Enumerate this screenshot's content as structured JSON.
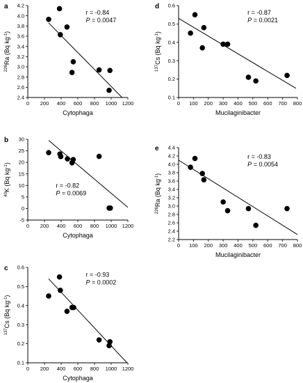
{
  "chart_data": [
    {
      "panel": "a",
      "type": "scatter",
      "xlabel": "Cytophaga",
      "ylabel": "226Ra (Bq kg-1)",
      "ylabel_parts": {
        "sup": "226",
        "main": "Ra (Bq kg",
        "exp": "-1",
        "close": ")"
      },
      "xlim": [
        0,
        1200
      ],
      "ylim": [
        2.4,
        4.2
      ],
      "xticks": [
        0,
        200,
        400,
        600,
        800,
        1000,
        1200
      ],
      "yticks": [
        2.4,
        2.6,
        2.8,
        3.0,
        3.2,
        3.4,
        3.6,
        3.8,
        4.0,
        4.2
      ],
      "ytick_labels": [
        "2.4",
        "2.6",
        "2.8",
        "3.0",
        "3.2",
        "3.4",
        "3.6",
        "3.8",
        "4.0",
        "4.2"
      ],
      "points": [
        [
          250,
          3.93
        ],
        [
          380,
          4.14
        ],
        [
          390,
          3.63
        ],
        [
          470,
          3.78
        ],
        [
          530,
          2.89
        ],
        [
          545,
          3.1
        ],
        [
          855,
          2.94
        ],
        [
          985,
          2.93
        ],
        [
          975,
          2.54
        ]
      ],
      "fit": {
        "x": [
          250,
          1130
        ],
        "y": [
          3.86,
          2.4
        ]
      },
      "r_text": "r = -0.84",
      "p_label": "P",
      "p_value": " = 0.0047"
    },
    {
      "panel": "b",
      "type": "scatter",
      "xlabel": "Cytophaga",
      "ylabel": "40K (Bq kg-1)",
      "ylabel_parts": {
        "sup": "40",
        "main": "K (Bq kg",
        "exp": "-1",
        "close": ")"
      },
      "xlim": [
        0,
        1200
      ],
      "ylim": [
        -5,
        30
      ],
      "xticks": [
        0,
        200,
        400,
        600,
        800,
        1000,
        1200
      ],
      "yticks": [
        -5,
        0,
        5,
        10,
        15,
        20,
        25,
        30
      ],
      "ytick_labels": [
        "-5",
        "0",
        "5",
        "10",
        "15",
        "20",
        "25",
        "30"
      ],
      "points": [
        [
          250,
          24.2
        ],
        [
          385,
          23.6
        ],
        [
          395,
          22.5
        ],
        [
          475,
          21.5
        ],
        [
          530,
          19.8
        ],
        [
          545,
          21.2
        ],
        [
          855,
          22.6
        ],
        [
          975,
          0.2
        ],
        [
          990,
          0.2
        ]
      ],
      "fit": {
        "x": [
          250,
          1200
        ],
        "y": [
          29.5,
          0.5
        ]
      },
      "r_text": "r = -0.82",
      "p_label": "P",
      "p_value": " = 0.0069"
    },
    {
      "panel": "c",
      "type": "scatter",
      "xlabel": "Cytophaga",
      "ylabel": "137Cs (Bq kg-1)",
      "ylabel_parts": {
        "sup": "137",
        "main": "Cs (Bq kg",
        "exp": "-1",
        "close": ")"
      },
      "xlim": [
        0,
        1200
      ],
      "ylim": [
        0.1,
        0.6
      ],
      "xticks": [
        0,
        200,
        400,
        600,
        800,
        1000,
        1200
      ],
      "yticks": [
        0.1,
        0.2,
        0.3,
        0.4,
        0.5,
        0.6
      ],
      "ytick_labels": [
        "0.1",
        "0.2",
        "0.3",
        "0.4",
        "0.5",
        "0.6"
      ],
      "points": [
        [
          250,
          0.45
        ],
        [
          380,
          0.55
        ],
        [
          390,
          0.48
        ],
        [
          470,
          0.37
        ],
        [
          530,
          0.39
        ],
        [
          550,
          0.39
        ],
        [
          855,
          0.22
        ],
        [
          975,
          0.19
        ],
        [
          985,
          0.21
        ]
      ],
      "fit": {
        "x": [
          250,
          1190
        ],
        "y": [
          0.54,
          0.1
        ]
      },
      "r_text": "r = -0.93",
      "p_label": "P",
      "p_value": " = 0.0002"
    },
    {
      "panel": "d",
      "type": "scatter",
      "xlabel": "Mucilaginibacter",
      "ylabel": "137Cs (Bq kg-1)",
      "ylabel_parts": {
        "sup": "137",
        "main": "Cs (Bq kg",
        "exp": "-1",
        "close": ")"
      },
      "xlim": [
        0,
        800
      ],
      "ylim": [
        0.1,
        0.6
      ],
      "xticks": [
        0,
        100,
        200,
        300,
        400,
        500,
        600,
        700,
        800
      ],
      "yticks": [
        0.1,
        0.2,
        0.3,
        0.4,
        0.5,
        0.6
      ],
      "ytick_labels": [
        "0.1",
        "0.2",
        "0.3",
        "0.4",
        "0.5",
        "0.6"
      ],
      "points": [
        [
          80,
          0.45
        ],
        [
          110,
          0.55
        ],
        [
          160,
          0.37
        ],
        [
          170,
          0.48
        ],
        [
          300,
          0.39
        ],
        [
          330,
          0.39
        ],
        [
          470,
          0.21
        ],
        [
          520,
          0.19
        ],
        [
          730,
          0.22
        ]
      ],
      "fit": {
        "x": [
          0,
          790
        ],
        "y": [
          0.53,
          0.15
        ]
      },
      "r_text": "r = -0.87",
      "p_label": "P",
      "p_value": " = 0.0021"
    },
    {
      "panel": "e",
      "type": "scatter",
      "xlabel": "Mucilaginibacter",
      "ylabel": "226Ra (Bq kg-1)",
      "ylabel_parts": {
        "sup": "226",
        "main": "Ra (Bq kg",
        "exp": "-1",
        "close": ")"
      },
      "xlim": [
        0,
        800
      ],
      "ylim": [
        2.2,
        4.4
      ],
      "xticks": [
        0,
        100,
        200,
        300,
        400,
        500,
        600,
        700,
        800
      ],
      "yticks": [
        2.2,
        2.4,
        2.6,
        2.8,
        3.0,
        3.2,
        3.4,
        3.6,
        3.8,
        4.0,
        4.2,
        4.4
      ],
      "ytick_labels": [
        "2.2",
        "2.4",
        "2.6",
        "2.8",
        "3.0",
        "3.2",
        "3.4",
        "3.6",
        "3.8",
        "4.0",
        "4.2",
        "4.4"
      ],
      "points": [
        [
          80,
          3.93
        ],
        [
          110,
          4.14
        ],
        [
          160,
          3.78
        ],
        [
          170,
          3.63
        ],
        [
          300,
          3.1
        ],
        [
          330,
          2.89
        ],
        [
          470,
          2.94
        ],
        [
          520,
          2.54
        ],
        [
          730,
          2.94
        ]
      ],
      "fit": {
        "x": [
          0,
          800
        ],
        "y": [
          4.1,
          2.32
        ]
      },
      "r_text": "r = -0.83",
      "p_label": "P",
      "p_value": " = 0.0054"
    }
  ]
}
